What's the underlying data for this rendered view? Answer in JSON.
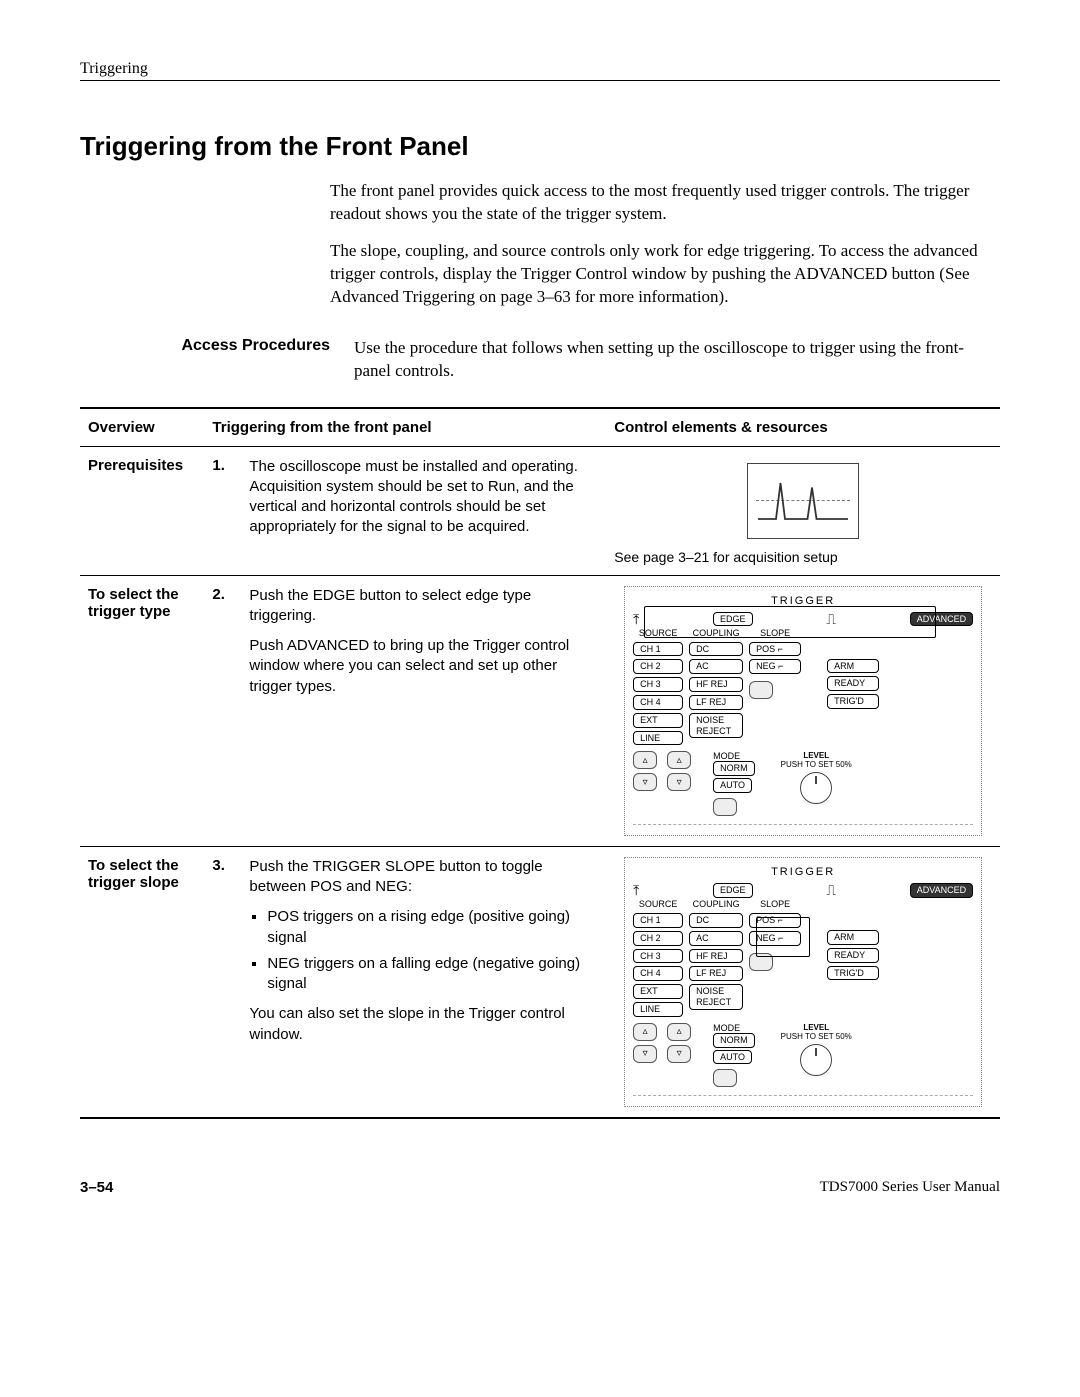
{
  "page_header": "Triggering",
  "section_title": "Triggering from the Front Panel",
  "intro_p1": "The front panel provides quick access to the most frequently used trigger controls. The trigger readout shows you the state of the trigger system.",
  "intro_p2": "The slope, coupling, and source controls only work for edge triggering. To access the advanced trigger controls, display the Trigger Control window by pushing the ADVANCED button (See Advanced Triggering on page 3–63 for more information).",
  "access_label": "Access Procedures",
  "access_text": "Use the procedure that follows when setting up the oscilloscope to trigger using the front-panel controls.",
  "table": {
    "head": {
      "overview": "Overview",
      "steps": "Triggering from the front panel",
      "resources": "Control elements & resources"
    },
    "rows": [
      {
        "label": "Prerequisites",
        "num": "1.",
        "step_paras": [
          "The oscilloscope must be installed and operating. Acquisition system should be set to Run, and the vertical and horizontal controls should be set appropriately for the signal to be acquired."
        ],
        "bullets": [],
        "res_caption": "See page 3–21 for acquisition setup",
        "panel": "acq"
      },
      {
        "label": "To select the trigger type",
        "num": "2.",
        "step_paras": [
          "Push the EDGE button to select edge type triggering.",
          "Push ADVANCED to bring up the Trigger control window where you can select and set up other trigger types."
        ],
        "bullets": [],
        "res_caption": "",
        "panel": "trigger",
        "highlight": "top"
      },
      {
        "label": "To select the trigger slope",
        "num": "3.",
        "step_paras": [
          "Push the TRIGGER SLOPE button to toggle between POS and NEG:"
        ],
        "bullets": [
          "POS triggers on a rising edge (positive going) signal",
          "NEG triggers on a falling edge (negative going) signal"
        ],
        "after_bullets": "You can also set the slope in the Trigger control window.",
        "res_caption": "",
        "panel": "trigger",
        "highlight": "slope"
      }
    ]
  },
  "trigger_panel": {
    "title": "TRIGGER",
    "edge": "EDGE",
    "advanced": "ADVANCED",
    "headers": {
      "source": "SOURCE",
      "coupling": "COUPLING",
      "slope": "SLOPE"
    },
    "source_btns": [
      "CH 1",
      "CH 2",
      "CH 3",
      "CH 4",
      "EXT",
      "LINE"
    ],
    "coupling_btns": [
      "DC",
      "AC",
      "HF REJ",
      "LF REJ",
      "NOISE REJECT"
    ],
    "slope_btns": [
      "POS ⌐",
      "NEG ⌐"
    ],
    "status_btns": [
      "ARM",
      "READY",
      "TRIG'D"
    ],
    "mode_label": "MODE",
    "mode_btns": [
      "NORM",
      "AUTO"
    ],
    "level_label": "LEVEL",
    "level_sub": "PUSH TO SET 50%"
  },
  "footer": {
    "page": "3–54",
    "manual": "TDS7000 Series User Manual"
  }
}
